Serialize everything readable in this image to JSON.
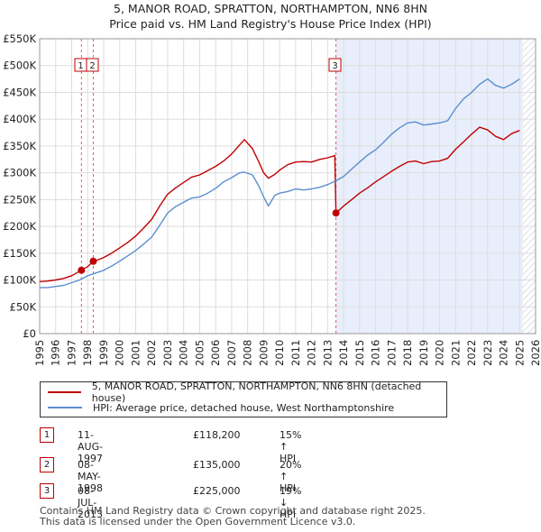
{
  "chart_data": {
    "type": "line",
    "title": "5, MANOR ROAD, SPRATTON, NORTHAMPTON, NN6 8HN",
    "subtitle": "Price paid vs. HM Land Registry's House Price Index (HPI)",
    "xlabel": "",
    "ylabel": "",
    "xlim": [
      1995,
      2026
    ],
    "ylim": [
      0,
      550000
    ],
    "y_ticks": [
      0,
      50000,
      100000,
      150000,
      200000,
      250000,
      300000,
      350000,
      400000,
      450000,
      500000,
      550000
    ],
    "y_tick_labels": [
      "£0",
      "£50K",
      "£100K",
      "£150K",
      "£200K",
      "£250K",
      "£300K",
      "£350K",
      "£400K",
      "£450K",
      "£500K",
      "£550K"
    ],
    "x_ticks": [
      1995,
      1996,
      1997,
      1998,
      1999,
      2000,
      2001,
      2002,
      2003,
      2004,
      2005,
      2006,
      2007,
      2008,
      2009,
      2010,
      2011,
      2012,
      2013,
      2014,
      2015,
      2016,
      2017,
      2018,
      2019,
      2020,
      2021,
      2022,
      2023,
      2024,
      2025,
      2026
    ],
    "shaded_region": {
      "start": 2013.52,
      "end": 2025.2
    },
    "hatched_region": {
      "start": 2025.2,
      "end": 2026
    },
    "series": [
      {
        "name": "5, MANOR ROAD, SPRATTON, NORTHAMPTON, NN6 8HN (detached house)",
        "color": "#c00000",
        "x": [
          1995.0,
          1995.5,
          1996.0,
          1996.5,
          1997.0,
          1997.61,
          1998.0,
          1998.35,
          1998.6,
          1999.0,
          1999.5,
          2000.0,
          2000.5,
          2001.0,
          2001.5,
          2002.0,
          2002.5,
          2003.0,
          2003.5,
          2004.0,
          2004.5,
          2005.0,
          2005.5,
          2006.0,
          2006.5,
          2007.0,
          2007.5,
          2007.8,
          2008.3,
          2008.7,
          2009.0,
          2009.3,
          2009.7,
          2010.0,
          2010.5,
          2011.0,
          2011.5,
          2012.0,
          2012.5,
          2013.0,
          2013.45,
          2013.52,
          2014.0,
          2014.5,
          2015.0,
          2015.5,
          2016.0,
          2016.5,
          2017.0,
          2017.5,
          2018.0,
          2018.5,
          2019.0,
          2019.5,
          2020.0,
          2020.5,
          2021.0,
          2021.5,
          2022.0,
          2022.5,
          2023.0,
          2023.5,
          2024.0,
          2024.5,
          2025.0
        ],
        "values": [
          97000,
          98000,
          100000,
          103000,
          108000,
          118200,
          125000,
          135000,
          137000,
          142000,
          150000,
          160000,
          170000,
          182000,
          197000,
          213000,
          238000,
          260000,
          272000,
          282000,
          292000,
          296000,
          304000,
          312000,
          322000,
          335000,
          352000,
          362000,
          345000,
          320000,
          300000,
          290000,
          297000,
          305000,
          315000,
          320000,
          321000,
          320000,
          325000,
          328000,
          332000,
          225000,
          238000,
          250000,
          262000,
          272000,
          283000,
          293000,
          303000,
          312000,
          320000,
          322000,
          317000,
          321000,
          322000,
          327000,
          344000,
          358000,
          372000,
          385000,
          380000,
          368000,
          362000,
          373000,
          379000
        ]
      },
      {
        "name": "HPI: Average price, detached house, West Northamptonshire",
        "color": "#5b8fd0",
        "x": [
          1995.0,
          1995.5,
          1996.0,
          1996.5,
          1997.0,
          1997.5,
          1998.0,
          1998.5,
          1999.0,
          1999.5,
          2000.0,
          2000.5,
          2001.0,
          2001.5,
          2002.0,
          2002.5,
          2003.0,
          2003.5,
          2004.0,
          2004.5,
          2005.0,
          2005.5,
          2006.0,
          2006.5,
          2007.0,
          2007.5,
          2007.8,
          2008.3,
          2008.7,
          2009.0,
          2009.3,
          2009.7,
          2010.0,
          2010.5,
          2011.0,
          2011.5,
          2012.0,
          2012.5,
          2013.0,
          2013.5,
          2014.0,
          2014.5,
          2015.0,
          2015.5,
          2016.0,
          2016.5,
          2017.0,
          2017.5,
          2018.0,
          2018.5,
          2019.0,
          2019.5,
          2020.0,
          2020.5,
          2021.0,
          2021.5,
          2022.0,
          2022.5,
          2023.0,
          2023.5,
          2024.0,
          2024.5,
          2025.0
        ],
        "values": [
          86000,
          86000,
          88000,
          90000,
          95000,
          100000,
          108000,
          113000,
          118000,
          126000,
          135000,
          145000,
          155000,
          167000,
          180000,
          202000,
          225000,
          237000,
          245000,
          253000,
          255000,
          262000,
          271000,
          283000,
          291000,
          300000,
          301000,
          296000,
          275000,
          255000,
          238000,
          258000,
          262000,
          265000,
          270000,
          268000,
          270000,
          273000,
          278000,
          285000,
          293000,
          307000,
          320000,
          333000,
          343000,
          357000,
          372000,
          384000,
          393000,
          395000,
          389000,
          391000,
          393000,
          397000,
          420000,
          438000,
          450000,
          465000,
          475000,
          463000,
          458000,
          465000,
          475000
        ]
      }
    ],
    "sales": [
      {
        "num": "1",
        "x": 1997.61,
        "value": 118200
      },
      {
        "num": "2",
        "x": 1998.35,
        "value": 135000
      },
      {
        "num": "3",
        "x": 2013.52,
        "value": 225000
      }
    ]
  },
  "legend": {
    "property_label": "5, MANOR ROAD, SPRATTON, NORTHAMPTON, NN6 8HN (detached house)",
    "hpi_label": "HPI: Average price, detached house, West Northamptonshire"
  },
  "sales_table": [
    {
      "num": "1",
      "date": "11-AUG-1997",
      "price": "£118,200",
      "hpi": "15% ↑ HPI"
    },
    {
      "num": "2",
      "date": "08-MAY-1998",
      "price": "£135,000",
      "hpi": "20% ↑ HPI"
    },
    {
      "num": "3",
      "date": "08-JUL-2013",
      "price": "£225,000",
      "hpi": "19% ↓ HPI"
    }
  ],
  "footer": {
    "line1": "Contains HM Land Registry data © Crown copyright and database right 2025.",
    "line2": "This data is licensed under the Open Government Licence v3.0."
  },
  "colors": {
    "property": "#c00000",
    "hpi": "#5b8fd0",
    "shade": "#e8eefb"
  }
}
